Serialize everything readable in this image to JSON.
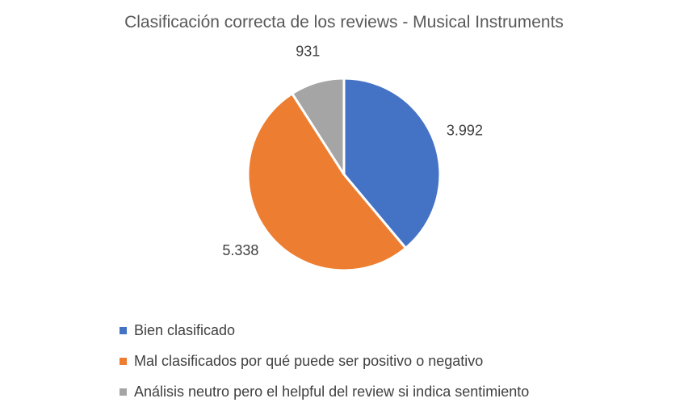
{
  "chart_data": {
    "type": "pie",
    "title": "Clasificación correcta de los reviews - Musical Instruments",
    "categories": [
      "Bien clasificado",
      "Mal clasificados por qué puede ser positivo o negativo",
      "Análisis neutro pero el helpful del review si indica sentimiento"
    ],
    "values": [
      3992,
      5338,
      931
    ],
    "data_labels": [
      "3.992",
      "5.338",
      "931"
    ],
    "colors": [
      "#4472C4",
      "#ED7D31",
      "#A5A5A5"
    ],
    "legend": "bottom"
  }
}
